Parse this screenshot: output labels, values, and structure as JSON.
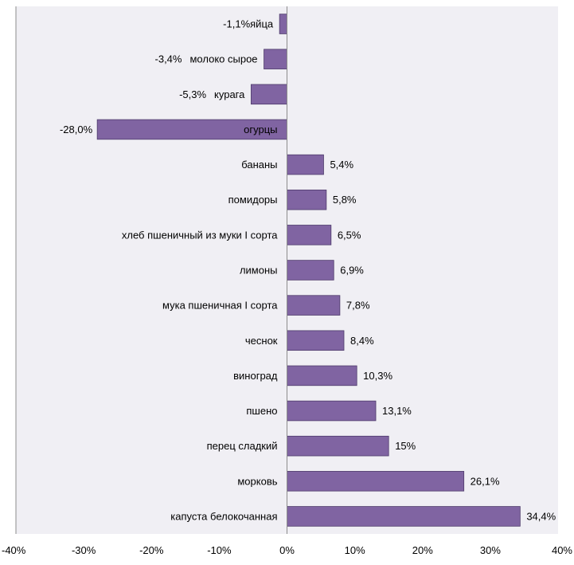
{
  "chart_data": {
    "type": "bar",
    "orientation": "horizontal",
    "title": "",
    "xlabel": "",
    "ylabel": "",
    "xlim": [
      -40,
      40
    ],
    "x_ticks": [
      -40,
      -30,
      -20,
      -10,
      0,
      10,
      20,
      30,
      40
    ],
    "x_tick_labels": [
      "-40%",
      "-30%",
      "-20%",
      "-10%",
      "0%",
      "10%",
      "20%",
      "30%",
      "40%"
    ],
    "grid": false,
    "plot_background": "#f0eff4",
    "bar_color": "#8064a2",
    "bar_border_color": "#4e3b6b",
    "categories": [
      "яйца",
      "молоко сырое",
      "курага",
      "огурцы",
      "бананы",
      "помидоры",
      "хлеб пшеничный из муки I сорта",
      "лимоны",
      "мука пшеничная I сорта",
      "чеснок",
      "виноград",
      "пшено",
      "перец сладкий",
      "морковь",
      "капуста белокочанная"
    ],
    "values": [
      -1.1,
      -3.4,
      -5.3,
      -28.0,
      5.4,
      5.8,
      6.5,
      6.9,
      7.8,
      8.4,
      10.3,
      13.1,
      15,
      26.1,
      34.4
    ],
    "data_labels": [
      "-1,1%",
      "-3,4%",
      "-5,3%",
      "-28,0%",
      "5,4%",
      "5,8%",
      "6,5%",
      "6,9%",
      "7,8%",
      "8,4%",
      "10,3%",
      "13,1%",
      "15%",
      "26,1%",
      "34,4%"
    ]
  }
}
